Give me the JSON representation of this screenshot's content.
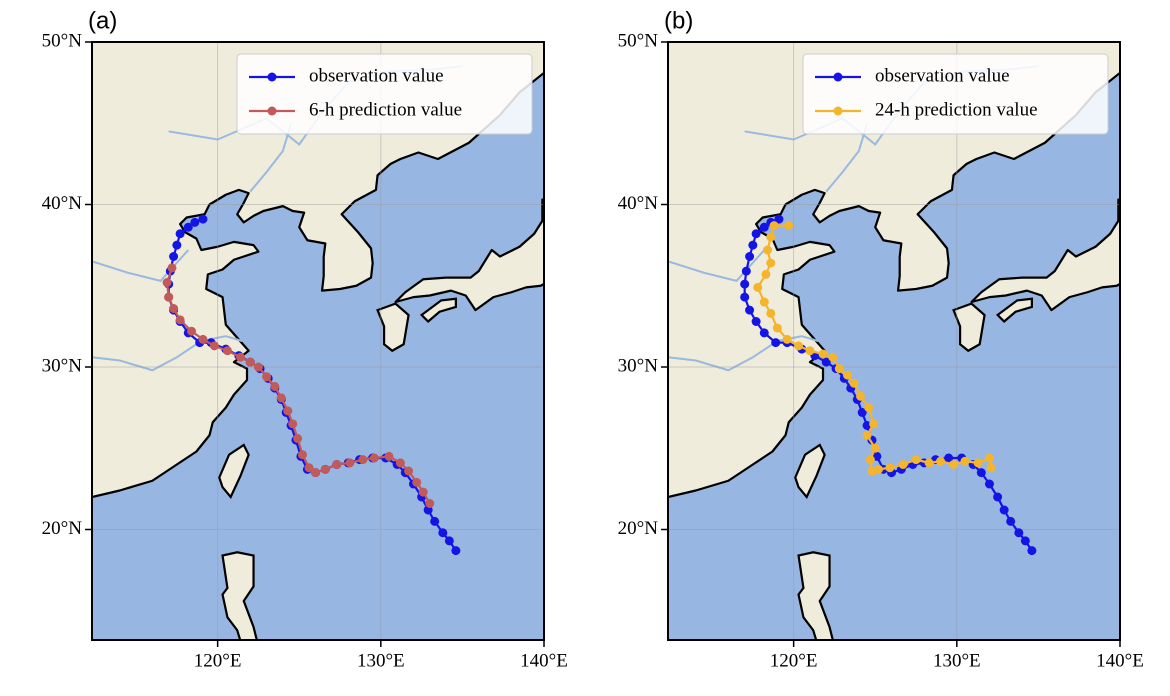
{
  "chart_data": [
    {
      "type": "line",
      "panel_label": "(a)",
      "grid": true,
      "legend": "upper right",
      "xlim": [
        112.3,
        140
      ],
      "ylim": [
        13.2,
        50
      ],
      "xticks": [
        {
          "value": 120,
          "label": "120°E"
        },
        {
          "value": 130,
          "label": "130°E"
        },
        {
          "value": 140,
          "label": "140°E"
        }
      ],
      "yticks": [
        {
          "value": 20,
          "label": "20°N"
        },
        {
          "value": 30,
          "label": "30°N"
        },
        {
          "value": 40,
          "label": "40°N"
        },
        {
          "value": 50,
          "label": "50°N"
        }
      ],
      "series": [
        {
          "name": "observation value",
          "color": "#1414e6",
          "x": [
            134.6,
            134.2,
            133.8,
            133.3,
            132.9,
            132.5,
            132,
            131.5,
            131,
            130.3,
            129.5,
            128.7,
            128,
            127.3,
            126.6,
            126,
            125.5,
            125.1,
            124.8,
            124.5,
            124.2,
            123.9,
            123.5,
            123.1,
            122.6,
            122,
            121.3,
            120.5,
            119.6,
            118.9,
            118.2,
            117.7,
            117.3,
            117,
            117,
            117.1,
            117.3,
            117.5,
            117.7,
            118.2,
            118.6,
            119.1
          ],
          "values": [
            18.7,
            19.3,
            19.8,
            20.5,
            21.2,
            22,
            22.8,
            23.5,
            24,
            24.4,
            24.4,
            24.3,
            24.1,
            24,
            23.7,
            23.5,
            23.7,
            24.5,
            25.5,
            26.4,
            27.2,
            28,
            28.7,
            29.3,
            29.9,
            30.3,
            30.7,
            31.1,
            31.5,
            31.5,
            32.1,
            32.8,
            33.5,
            34.3,
            35.1,
            35.9,
            36.8,
            37.5,
            38.2,
            38.6,
            38.9,
            39.1
          ]
        },
        {
          "name": "6-h prediction value",
          "color": "#c25a5a",
          "x": [
            133,
            132.6,
            132.2,
            131.7,
            131.2,
            130.5,
            129.6,
            128.9,
            128.1,
            127.3,
            126.6,
            126,
            125.6,
            125.2,
            124.9,
            124.6,
            124.3,
            123.9,
            123.5,
            123,
            122.5,
            122,
            121.4,
            120.6,
            119.8,
            119.1,
            118.4,
            117.7,
            117.3,
            117,
            116.9,
            117.2
          ],
          "values": [
            21.6,
            22.3,
            22.9,
            23.6,
            24.1,
            24.5,
            24.4,
            24.3,
            24.1,
            24,
            23.7,
            23.5,
            23.8,
            24.6,
            25.6,
            26.5,
            27.3,
            28.1,
            28.8,
            29.4,
            30,
            30.3,
            30.6,
            31,
            31.3,
            31.7,
            32.2,
            32.9,
            33.6,
            34.3,
            35.2,
            36.1
          ]
        }
      ]
    },
    {
      "type": "line",
      "panel_label": "(b)",
      "grid": true,
      "legend": "upper right",
      "xlim": [
        112.3,
        140
      ],
      "ylim": [
        13.2,
        50
      ],
      "xticks": [
        {
          "value": 120,
          "label": "120°E"
        },
        {
          "value": 130,
          "label": "130°E"
        },
        {
          "value": 140,
          "label": "140°E"
        }
      ],
      "yticks": [
        {
          "value": 20,
          "label": "20°N"
        },
        {
          "value": 30,
          "label": "30°N"
        },
        {
          "value": 40,
          "label": "40°N"
        },
        {
          "value": 50,
          "label": "50°N"
        }
      ],
      "series": [
        {
          "name": "observation value",
          "color": "#1414e6",
          "x": [
            134.6,
            134.2,
            133.8,
            133.3,
            132.9,
            132.5,
            132,
            131.5,
            131,
            130.3,
            129.5,
            128.7,
            128,
            127.3,
            126.6,
            126,
            125.5,
            125.1,
            124.8,
            124.5,
            124.2,
            123.9,
            123.5,
            123.1,
            122.6,
            122,
            121.3,
            120.5,
            119.6,
            118.9,
            118.2,
            117.7,
            117.3,
            117,
            117,
            117.1,
            117.3,
            117.5,
            117.7,
            118.2,
            118.6,
            119.1
          ],
          "values": [
            18.7,
            19.3,
            19.8,
            20.5,
            21.2,
            22,
            22.8,
            23.5,
            24,
            24.4,
            24.4,
            24.3,
            24.1,
            24,
            23.7,
            23.5,
            23.7,
            24.5,
            25.5,
            26.4,
            27.2,
            28,
            28.7,
            29.3,
            29.9,
            30.3,
            30.7,
            31.1,
            31.5,
            31.5,
            32.1,
            32.8,
            33.5,
            34.3,
            35.1,
            35.9,
            36.8,
            37.5,
            38.2,
            38.6,
            38.9,
            39.1
          ]
        },
        {
          "name": "24-h prediction value",
          "color": "#f4b52c",
          "x": [
            132.1,
            132,
            131.3,
            130.5,
            129.8,
            129,
            128.3,
            127.5,
            126.7,
            125.9,
            125.2,
            124.8,
            124.7,
            125,
            124.5,
            124.9,
            124.6,
            124.1,
            123.7,
            123.3,
            122.8,
            122.4,
            121.8,
            121,
            120.3,
            119.6,
            119,
            118.6,
            118.2,
            117.8,
            118.3,
            118.6,
            118.4,
            118.6,
            118.8,
            119.7
          ],
          "values": [
            23.8,
            24.4,
            24.1,
            24.2,
            24,
            24.2,
            24.1,
            24.3,
            24,
            23.8,
            23.7,
            23.6,
            24.3,
            25,
            25.8,
            26.5,
            27.5,
            28.2,
            29,
            29.5,
            29.9,
            30.6,
            30.8,
            31,
            31.3,
            31.7,
            32.4,
            33.3,
            34,
            34.9,
            35.7,
            36.4,
            37.2,
            38,
            38.7,
            38.7
          ]
        }
      ]
    }
  ]
}
